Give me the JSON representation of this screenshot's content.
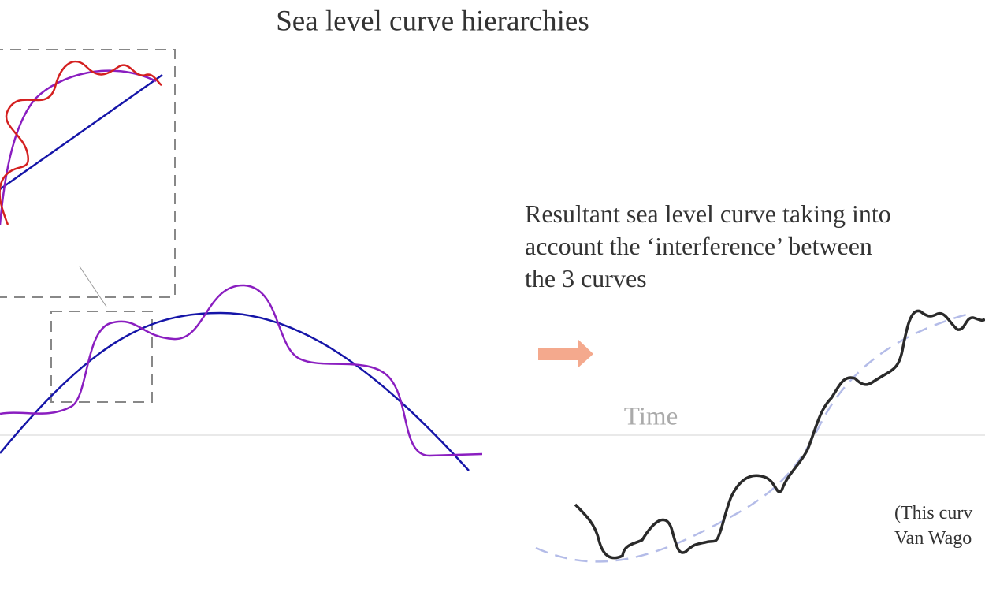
{
  "title": "Sea level curve hierarchies",
  "annotation": {
    "lines": [
      "Resultant sea level curve taking into",
      "account the ‘interference’ between",
      "the 3 curves"
    ]
  },
  "axis_label": "Time",
  "note": {
    "lines": [
      "(This curv",
      "Van Wago"
    ]
  }
}
